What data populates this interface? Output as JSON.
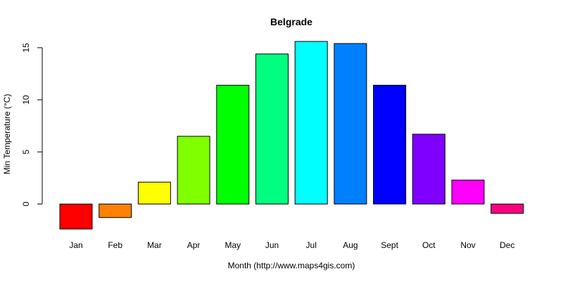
{
  "chart_data": {
    "type": "bar",
    "title": "Belgrade",
    "xlabel": "Month (http://www.maps4gis.com)",
    "ylabel": "Min Temperature (°C)",
    "categories": [
      "Jan",
      "Feb",
      "Mar",
      "Apr",
      "May",
      "Jun",
      "Jul",
      "Aug",
      "Sept",
      "Oct",
      "Nov",
      "Dec"
    ],
    "values": [
      -2.4,
      -1.3,
      2.1,
      6.5,
      11.4,
      14.4,
      15.6,
      15.4,
      11.4,
      6.7,
      2.3,
      -0.9
    ],
    "colors": [
      "#FF0000",
      "#FF8000",
      "#FFFF00",
      "#80FF00",
      "#00FF00",
      "#00FF80",
      "#00FFFF",
      "#0080FF",
      "#0000FF",
      "#8000FF",
      "#FF00FF",
      "#FF0080"
    ],
    "yticks": [
      0,
      5,
      10,
      15
    ],
    "ylim": [
      -2.4,
      15.6
    ],
    "grid": false,
    "legend": "none"
  }
}
